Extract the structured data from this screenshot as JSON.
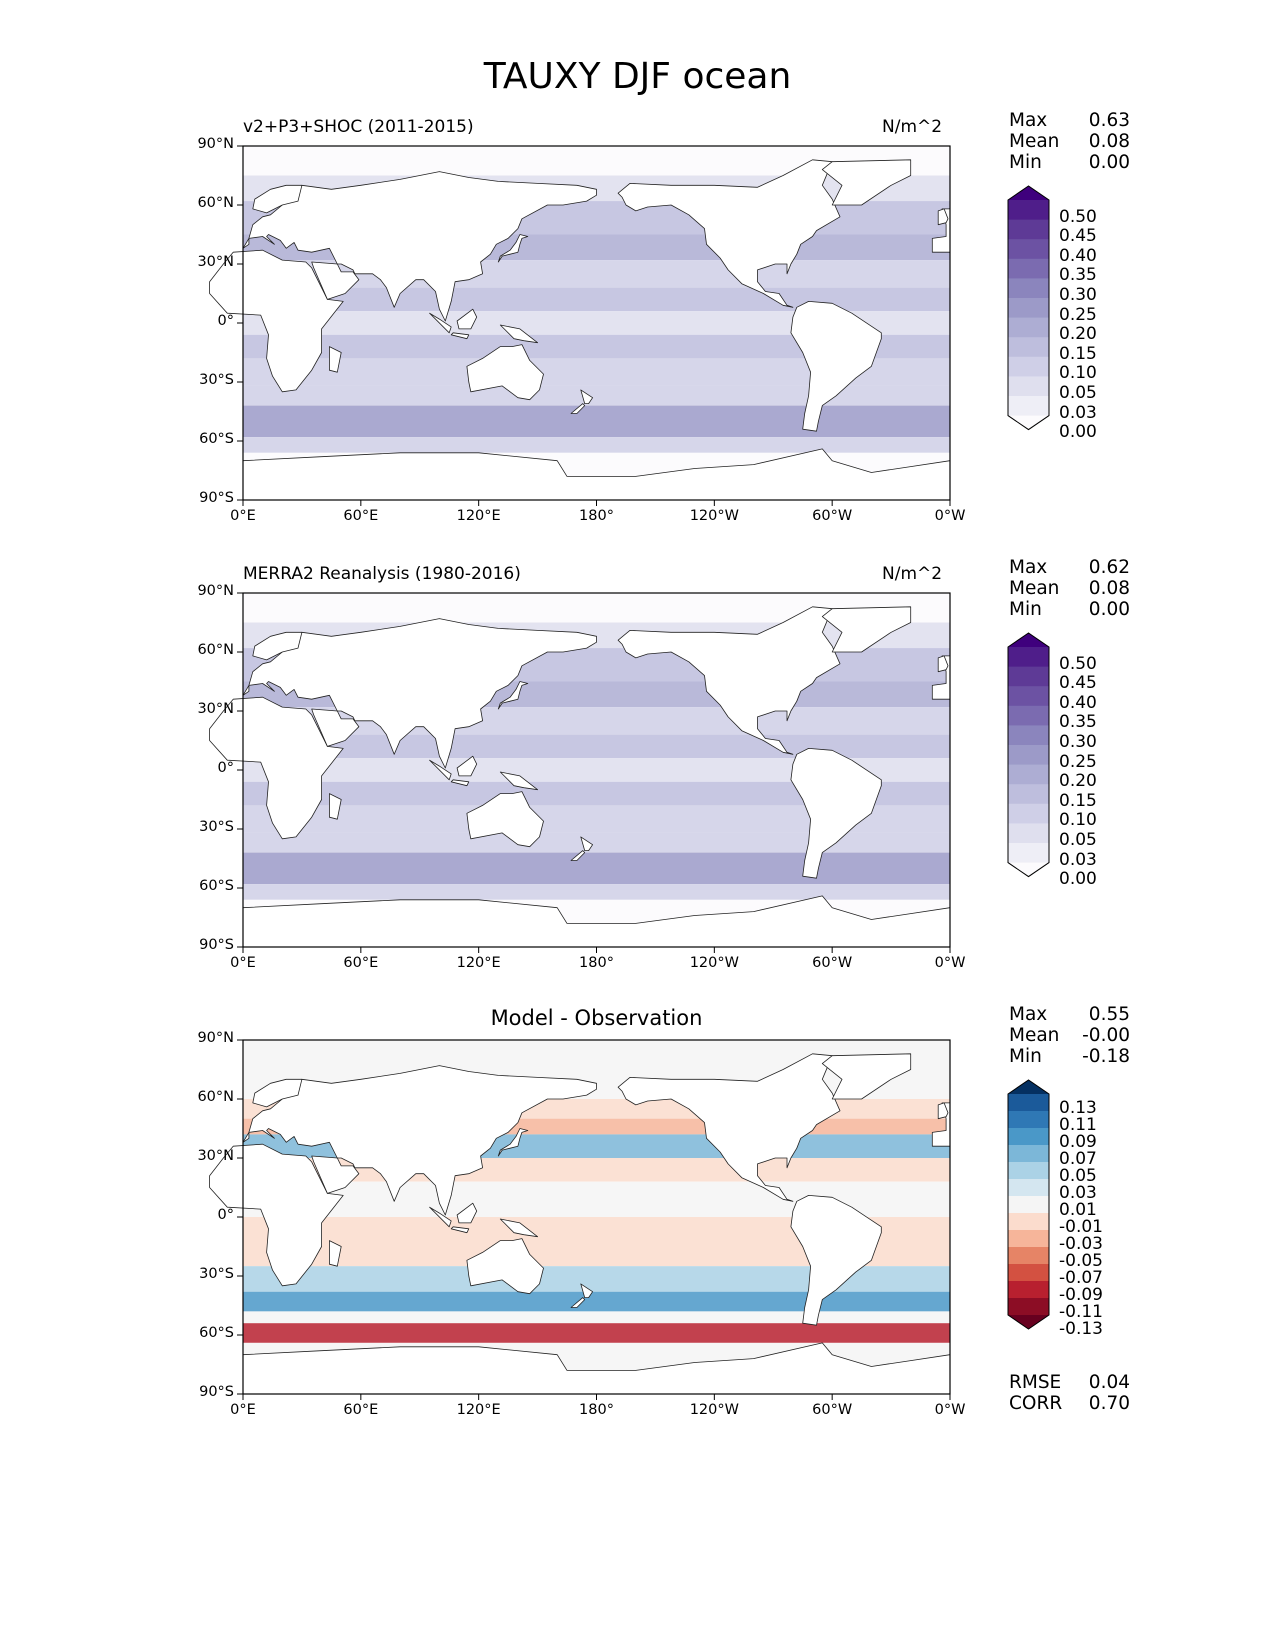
{
  "figure": {
    "title": "TAUXY DJF ocean"
  },
  "axes": {
    "lat_labels": [
      "90°N",
      "60°N",
      "30°N",
      "0°",
      "30°S",
      "60°S",
      "90°S"
    ],
    "lon_labels": [
      "0°E",
      "60°E",
      "120°E",
      "180°",
      "120°W",
      "60°W",
      "0°W"
    ]
  },
  "panels": [
    {
      "id": "test",
      "left_title": "v2+P3+SHOC (2011-2015)",
      "center_title": "",
      "right_title": "N/m^2",
      "stats": [
        {
          "label": "Max",
          "value": "0.63"
        },
        {
          "label": "Mean",
          "value": "0.08"
        },
        {
          "label": "Min",
          "value": "0.00"
        }
      ],
      "colorbar": {
        "ticks": [
          "0.50",
          "0.45",
          "0.40",
          "0.35",
          "0.30",
          "0.25",
          "0.20",
          "0.15",
          "0.10",
          "0.05",
          "0.03",
          "0.00"
        ],
        "colors": [
          "#3f007d",
          "#4f1e8a",
          "#5e3a96",
          "#6c52a3",
          "#7b6bb0",
          "#8b85bd",
          "#9c9ac8",
          "#adadd3",
          "#bebedd",
          "#cfcfe7",
          "#dfdfee",
          "#eeeef6",
          "#fcfbfd"
        ]
      },
      "extra_stats": []
    },
    {
      "id": "reference",
      "left_title": "MERRA2 Reanalysis (1980-2016)",
      "center_title": "",
      "right_title": "N/m^2",
      "stats": [
        {
          "label": "Max",
          "value": "0.62"
        },
        {
          "label": "Mean",
          "value": "0.08"
        },
        {
          "label": "Min",
          "value": "0.00"
        }
      ],
      "colorbar": {
        "ticks": [
          "0.50",
          "0.45",
          "0.40",
          "0.35",
          "0.30",
          "0.25",
          "0.20",
          "0.15",
          "0.10",
          "0.05",
          "0.03",
          "0.00"
        ],
        "colors": [
          "#3f007d",
          "#4f1e8a",
          "#5e3a96",
          "#6c52a3",
          "#7b6bb0",
          "#8b85bd",
          "#9c9ac8",
          "#adadd3",
          "#bebedd",
          "#cfcfe7",
          "#dfdfee",
          "#eeeef6",
          "#fcfbfd"
        ]
      },
      "extra_stats": []
    },
    {
      "id": "difference",
      "left_title": "",
      "center_title": "Model - Observation",
      "right_title": "",
      "stats": [
        {
          "label": "Max",
          "value": "0.55"
        },
        {
          "label": "Mean",
          "value": "-0.00"
        },
        {
          "label": "Min",
          "value": "-0.18"
        }
      ],
      "colorbar": {
        "ticks": [
          "0.13",
          "0.11",
          "0.09",
          "0.07",
          "0.05",
          "0.03",
          "0.01",
          "-0.01",
          "-0.03",
          "-0.05",
          "-0.07",
          "-0.09",
          "-0.11",
          "-0.13"
        ],
        "colors": [
          "#053061",
          "#1b5a9a",
          "#2f78b5",
          "#4a98c8",
          "#7cb7d8",
          "#abd2e6",
          "#d4e6f0",
          "#f5f5f5",
          "#fbdccd",
          "#f6b59a",
          "#e68466",
          "#d35141",
          "#b8202f",
          "#8c0d25",
          "#67001f"
        ]
      },
      "extra_stats": [
        {
          "label": "RMSE",
          "value": "0.04"
        },
        {
          "label": "CORR",
          "value": "0.70"
        }
      ]
    }
  ]
}
